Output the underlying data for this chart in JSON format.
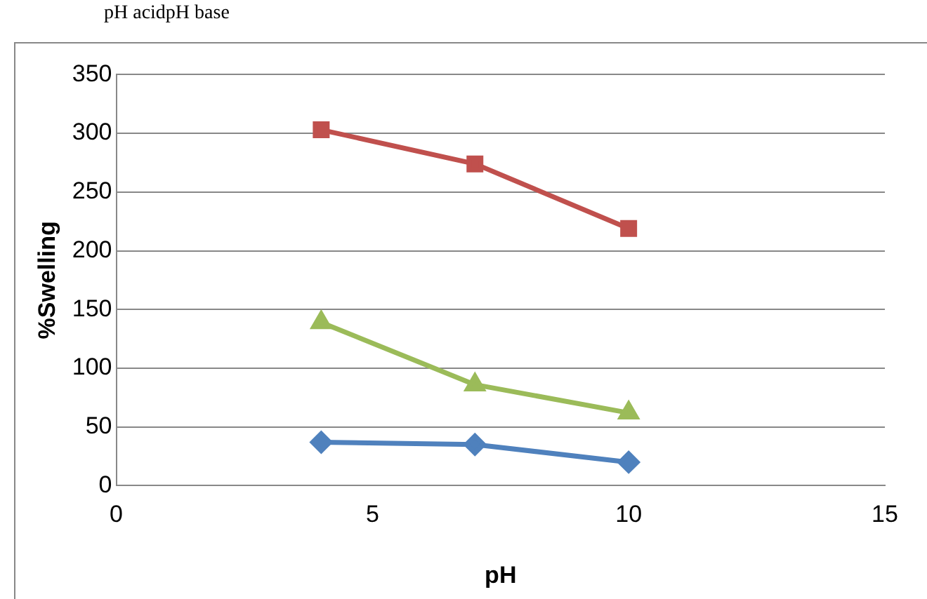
{
  "chart_data": {
    "type": "line",
    "xlabel": "pH",
    "ylabel": "%Swelling",
    "annotations": [
      "pH acidpH base"
    ],
    "xlim": [
      0,
      15
    ],
    "xticks": [
      0,
      5,
      10,
      15
    ],
    "ylim": [
      0,
      350
    ],
    "yticks": [
      0,
      50,
      100,
      150,
      200,
      250,
      300,
      350
    ],
    "grid": "y",
    "legend": false,
    "line_style": "solid",
    "series": [
      {
        "color": "#4f81bd",
        "marker": "diamond",
        "x": [
          4,
          7,
          10
        ],
        "values": [
          37,
          35,
          20
        ]
      },
      {
        "color": "#c0504d",
        "marker": "square",
        "x": [
          4,
          7,
          10
        ],
        "values": [
          303,
          274,
          219
        ]
      },
      {
        "color": "#9bbb59",
        "marker": "triangle",
        "x": [
          4,
          7,
          10
        ],
        "values": [
          139,
          86,
          62
        ]
      }
    ]
  }
}
